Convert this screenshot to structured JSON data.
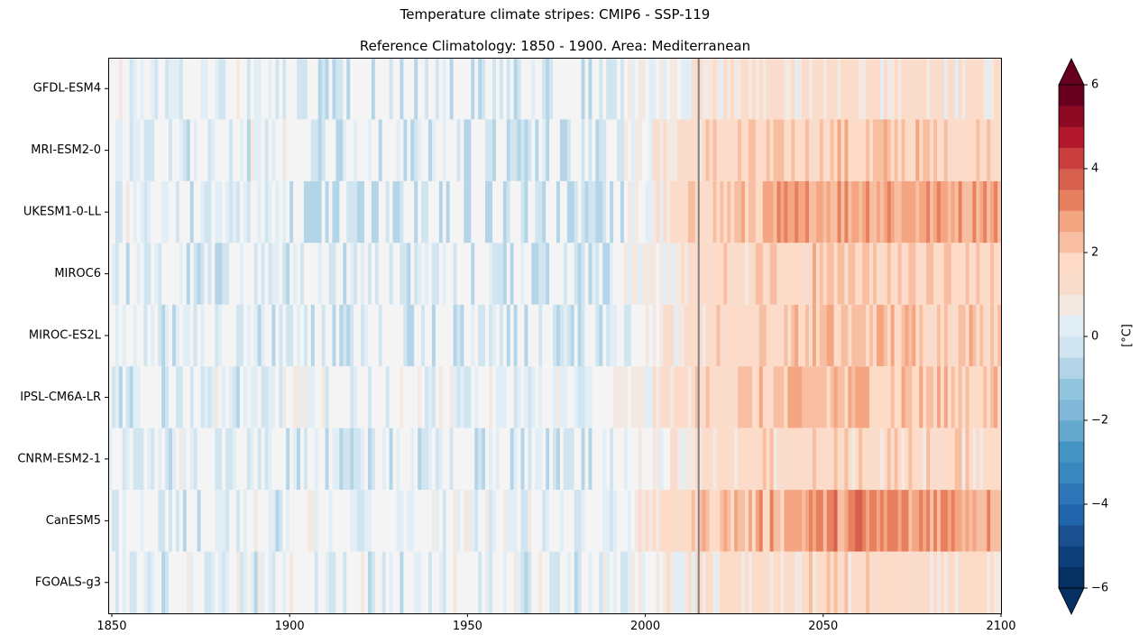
{
  "chart_data": {
    "type": "heatmap",
    "title": "Temperature climate stripes: CMIP6 - SSP-119",
    "subtitle": "Reference Climatology: 1850 - 1900. Area: Mediterranean",
    "xlabel": "",
    "ylabel": "",
    "x_range": [
      1849,
      2100
    ],
    "x_ticks": [
      1850,
      1900,
      1950,
      2000,
      2050,
      2100
    ],
    "reference_line_year": 2015,
    "models": [
      "GFDL-ESM4",
      "MRI-ESM2-0",
      "UKESM1-0-LL",
      "MIROC6",
      "MIROC-ES2L",
      "IPSL-CM6A-LR",
      "CNRM-ESM2-1",
      "CanESM5",
      "FGOALS-g3"
    ],
    "approx_mean_anomaly": [
      {
        "model": "GFDL-ESM4",
        "hist_1850_1900": 0.0,
        "hist_1900_2000": -0.2,
        "y2015": 1.0,
        "y2050": 1.2,
        "y2100": 1.0
      },
      {
        "model": "MRI-ESM2-0",
        "hist_1850_1900": 0.0,
        "hist_1900_2000": -0.1,
        "y2015": 1.5,
        "y2050": 2.0,
        "y2100": 1.8
      },
      {
        "model": "UKESM1-0-LL",
        "hist_1850_1900": 0.0,
        "hist_1900_2000": -0.4,
        "y2015": 1.8,
        "y2050": 2.8,
        "y2100": 2.8
      },
      {
        "model": "MIROC6",
        "hist_1850_1900": 0.0,
        "hist_1900_2000": -0.1,
        "y2015": 1.3,
        "y2050": 1.9,
        "y2100": 1.8
      },
      {
        "model": "MIROC-ES2L",
        "hist_1850_1900": 0.0,
        "hist_1900_2000": -0.2,
        "y2015": 1.4,
        "y2050": 2.1,
        "y2100": 2.0
      },
      {
        "model": "IPSL-CM6A-LR",
        "hist_1850_1900": 0.0,
        "hist_1900_2000": 0.1,
        "y2015": 1.6,
        "y2050": 2.3,
        "y2100": 2.0
      },
      {
        "model": "CNRM-ESM2-1",
        "hist_1850_1900": 0.0,
        "hist_1900_2000": -0.1,
        "y2015": 1.2,
        "y2050": 1.6,
        "y2100": 1.6
      },
      {
        "model": "CanESM5",
        "hist_1850_1900": 0.0,
        "hist_1900_2000": 0.1,
        "y2015": 2.0,
        "y2050": 3.0,
        "y2100": 2.8
      },
      {
        "model": "FGOALS-g3",
        "hist_1850_1900": 0.0,
        "hist_1900_2000": 0.0,
        "y2015": 1.0,
        "y2050": 1.5,
        "y2100": 1.3
      }
    ],
    "colorbar": {
      "colormap": "RdBu_r",
      "range": [
        -6,
        6
      ],
      "ticks": [
        -6,
        -4,
        -2,
        0,
        2,
        4,
        6
      ],
      "tick_labels": [
        "−6",
        "−4",
        "−2",
        "0",
        "2",
        "4",
        "6"
      ],
      "label": "[°C]",
      "extend": "both"
    },
    "reference_line_color": "#808080"
  }
}
